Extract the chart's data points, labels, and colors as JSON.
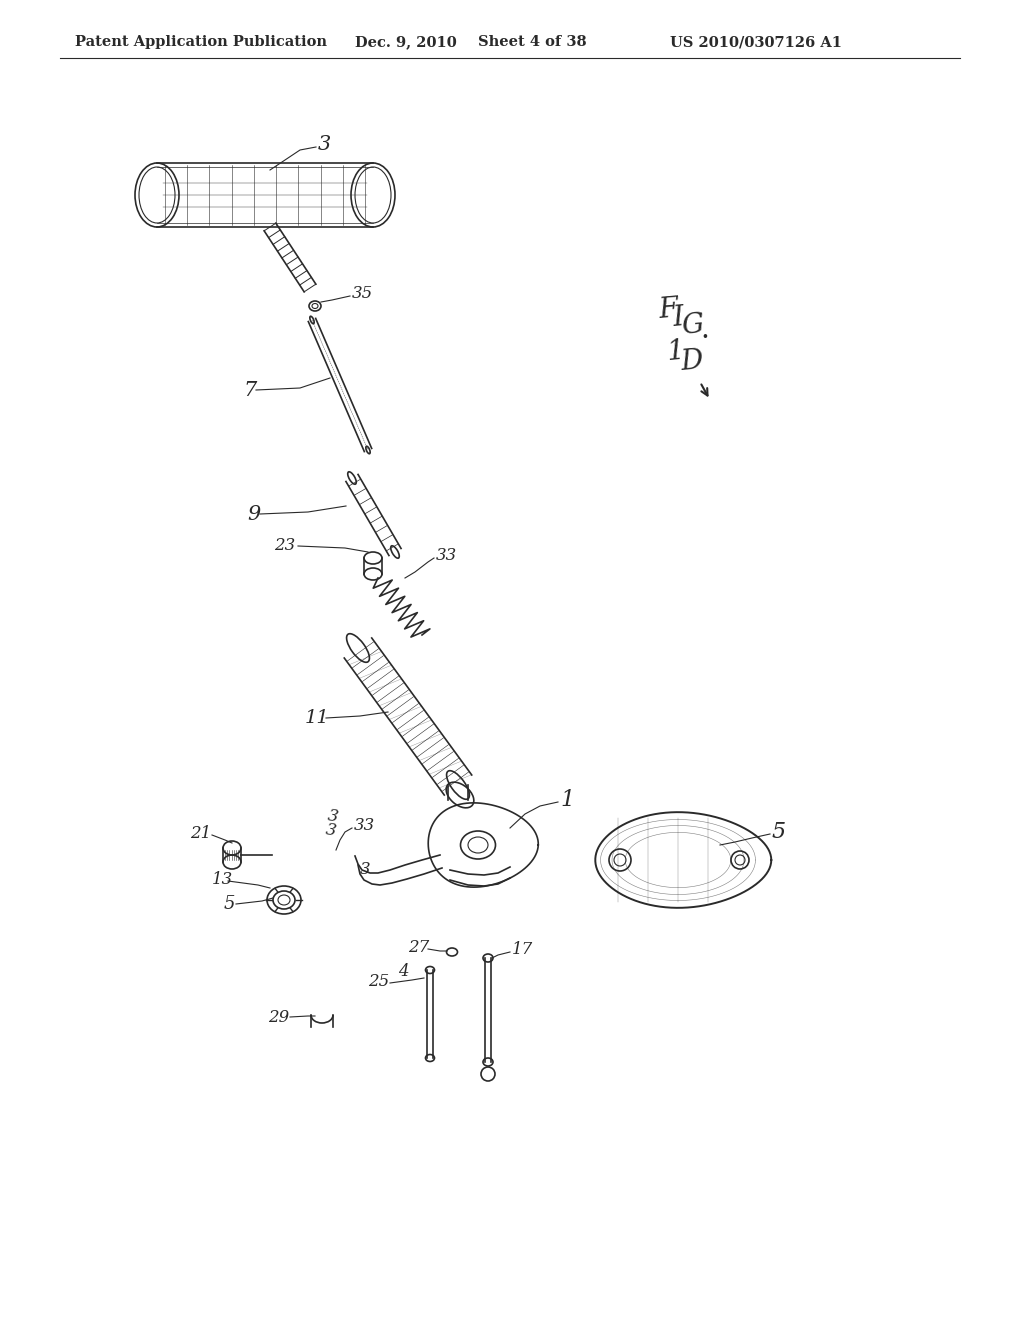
{
  "background_color": "#ffffff",
  "header_text": "Patent Application Publication",
  "header_date": "Dec. 9, 2010",
  "header_sheet": "Sheet 4 of 38",
  "header_patent": "US 2010/0307126 A1",
  "figure_label": "FIG. 1D",
  "line_color": "#2a2a2a",
  "header_fontsize": 10.5,
  "label_fontsize": 13
}
